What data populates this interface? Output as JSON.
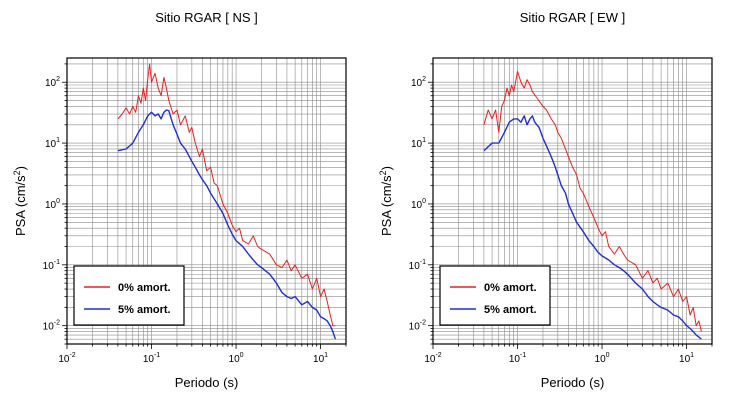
{
  "chart_data": [
    {
      "type": "line",
      "title": "Sitio RGAR [ NS ]",
      "xlabel": "Periodo (s)",
      "ylabel_main": "PSA (cm/s",
      "ylabel_sup": "2",
      "ylabel_close": ")",
      "xscale": "log",
      "yscale": "log",
      "xlim": [
        0.01,
        20
      ],
      "ylim": [
        0.005,
        250
      ],
      "grid": true,
      "legend_position": "bottom-left",
      "x_ticks": [
        {
          "value": 0.01,
          "base": "10",
          "exp": "-2"
        },
        {
          "value": 0.1,
          "base": "10",
          "exp": "-1"
        },
        {
          "value": 1,
          "base": "10",
          "exp": "0"
        },
        {
          "value": 10,
          "base": "10",
          "exp": "1"
        }
      ],
      "y_ticks": [
        {
          "value": 0.01,
          "base": "10",
          "exp": "-2"
        },
        {
          "value": 0.1,
          "base": "10",
          "exp": "-1"
        },
        {
          "value": 1,
          "base": "10",
          "exp": "0"
        },
        {
          "value": 10,
          "base": "10",
          "exp": "1"
        },
        {
          "value": 100,
          "base": "10",
          "exp": "2"
        }
      ],
      "series": [
        {
          "name": "0% amort.",
          "color": "#e8211f",
          "points": [
            [
              0.04,
              25
            ],
            [
              0.045,
              30
            ],
            [
              0.05,
              38
            ],
            [
              0.055,
              30
            ],
            [
              0.06,
              40
            ],
            [
              0.065,
              32
            ],
            [
              0.07,
              60
            ],
            [
              0.075,
              45
            ],
            [
              0.08,
              80
            ],
            [
              0.085,
              50
            ],
            [
              0.09,
              110
            ],
            [
              0.095,
              200
            ],
            [
              0.1,
              100
            ],
            [
              0.11,
              140
            ],
            [
              0.12,
              80
            ],
            [
              0.13,
              60
            ],
            [
              0.14,
              120
            ],
            [
              0.15,
              80
            ],
            [
              0.16,
              50
            ],
            [
              0.18,
              30
            ],
            [
              0.2,
              35
            ],
            [
              0.22,
              20
            ],
            [
              0.25,
              28
            ],
            [
              0.28,
              15
            ],
            [
              0.3,
              18
            ],
            [
              0.33,
              10
            ],
            [
              0.37,
              6
            ],
            [
              0.4,
              8
            ],
            [
              0.45,
              3.5
            ],
            [
              0.5,
              4
            ],
            [
              0.55,
              2.2
            ],
            [
              0.6,
              2
            ],
            [
              0.7,
              1
            ],
            [
              0.8,
              0.7
            ],
            [
              0.9,
              0.45
            ],
            [
              1,
              0.35
            ],
            [
              1.1,
              0.4
            ],
            [
              1.2,
              0.25
            ],
            [
              1.4,
              0.22
            ],
            [
              1.6,
              0.3
            ],
            [
              1.8,
              0.2
            ],
            [
              2,
              0.18
            ],
            [
              2.5,
              0.15
            ],
            [
              3,
              0.1
            ],
            [
              3.5,
              0.09
            ],
            [
              4,
              0.12
            ],
            [
              4.5,
              0.08
            ],
            [
              5,
              0.1
            ],
            [
              6,
              0.06
            ],
            [
              7,
              0.07
            ],
            [
              8,
              0.04
            ],
            [
              9,
              0.06
            ],
            [
              10,
              0.03
            ],
            [
              11,
              0.04
            ],
            [
              12,
              0.025
            ],
            [
              13,
              0.015
            ],
            [
              14,
              0.01
            ],
            [
              15,
              0.01
            ]
          ]
        },
        {
          "name": "5% amort.",
          "color": "#1f2fd8",
          "points": [
            [
              0.04,
              7.5
            ],
            [
              0.05,
              8
            ],
            [
              0.06,
              10
            ],
            [
              0.07,
              15
            ],
            [
              0.08,
              20
            ],
            [
              0.09,
              28
            ],
            [
              0.1,
              32
            ],
            [
              0.11,
              28
            ],
            [
              0.12,
              30
            ],
            [
              0.13,
              25
            ],
            [
              0.14,
              32
            ],
            [
              0.15,
              35
            ],
            [
              0.16,
              34
            ],
            [
              0.18,
              20
            ],
            [
              0.2,
              14
            ],
            [
              0.22,
              10
            ],
            [
              0.25,
              8
            ],
            [
              0.28,
              6
            ],
            [
              0.3,
              5
            ],
            [
              0.33,
              4
            ],
            [
              0.37,
              3
            ],
            [
              0.4,
              2.5
            ],
            [
              0.45,
              2
            ],
            [
              0.5,
              1.5
            ],
            [
              0.6,
              1
            ],
            [
              0.7,
              0.7
            ],
            [
              0.8,
              0.45
            ],
            [
              0.9,
              0.32
            ],
            [
              1,
              0.25
            ],
            [
              1.2,
              0.2
            ],
            [
              1.4,
              0.15
            ],
            [
              1.6,
              0.12
            ],
            [
              1.8,
              0.1
            ],
            [
              2,
              0.09
            ],
            [
              2.5,
              0.07
            ],
            [
              3,
              0.05
            ],
            [
              3.5,
              0.035
            ],
            [
              4,
              0.03
            ],
            [
              4.5,
              0.028
            ],
            [
              5,
              0.03
            ],
            [
              6,
              0.022
            ],
            [
              7,
              0.025
            ],
            [
              8,
              0.02
            ],
            [
              9,
              0.018
            ],
            [
              10,
              0.014
            ],
            [
              11,
              0.013
            ],
            [
              12,
              0.012
            ],
            [
              13,
              0.01
            ],
            [
              14,
              0.008
            ],
            [
              15,
              0.006
            ]
          ]
        }
      ]
    },
    {
      "type": "line",
      "title": "Sitio RGAR [ EW ]",
      "xlabel": "Periodo (s)",
      "ylabel_main": "PSA (cm/s",
      "ylabel_sup": "2",
      "ylabel_close": ")",
      "xscale": "log",
      "yscale": "log",
      "xlim": [
        0.01,
        20
      ],
      "ylim": [
        0.005,
        250
      ],
      "grid": true,
      "legend_position": "bottom-left",
      "x_ticks": [
        {
          "value": 0.01,
          "base": "10",
          "exp": "-2"
        },
        {
          "value": 0.1,
          "base": "10",
          "exp": "-1"
        },
        {
          "value": 1,
          "base": "10",
          "exp": "0"
        },
        {
          "value": 10,
          "base": "10",
          "exp": "1"
        }
      ],
      "y_ticks": [
        {
          "value": 0.01,
          "base": "10",
          "exp": "-2"
        },
        {
          "value": 0.1,
          "base": "10",
          "exp": "-1"
        },
        {
          "value": 1,
          "base": "10",
          "exp": "0"
        },
        {
          "value": 10,
          "base": "10",
          "exp": "1"
        },
        {
          "value": 100,
          "base": "10",
          "exp": "2"
        }
      ],
      "series": [
        {
          "name": "0% amort.",
          "color": "#e8211f",
          "points": [
            [
              0.04,
              20
            ],
            [
              0.045,
              35
            ],
            [
              0.05,
              25
            ],
            [
              0.055,
              35
            ],
            [
              0.06,
              15
            ],
            [
              0.065,
              40
            ],
            [
              0.07,
              50
            ],
            [
              0.075,
              80
            ],
            [
              0.08,
              60
            ],
            [
              0.085,
              90
            ],
            [
              0.09,
              70
            ],
            [
              0.095,
              100
            ],
            [
              0.1,
              150
            ],
            [
              0.11,
              100
            ],
            [
              0.12,
              80
            ],
            [
              0.13,
              110
            ],
            [
              0.14,
              90
            ],
            [
              0.15,
              70
            ],
            [
              0.17,
              55
            ],
            [
              0.2,
              40
            ],
            [
              0.22,
              35
            ],
            [
              0.25,
              25
            ],
            [
              0.28,
              20
            ],
            [
              0.3,
              15
            ],
            [
              0.33,
              12
            ],
            [
              0.37,
              8
            ],
            [
              0.4,
              6
            ],
            [
              0.45,
              4
            ],
            [
              0.5,
              3
            ],
            [
              0.55,
              1.8
            ],
            [
              0.6,
              1.5
            ],
            [
              0.7,
              0.9
            ],
            [
              0.8,
              0.6
            ],
            [
              0.9,
              0.4
            ],
            [
              1,
              0.3
            ],
            [
              1.1,
              0.35
            ],
            [
              1.2,
              0.2
            ],
            [
              1.4,
              0.15
            ],
            [
              1.6,
              0.2
            ],
            [
              1.8,
              0.15
            ],
            [
              2,
              0.12
            ],
            [
              2.5,
              0.1
            ],
            [
              3,
              0.06
            ],
            [
              3.5,
              0.08
            ],
            [
              4,
              0.05
            ],
            [
              4.5,
              0.06
            ],
            [
              5,
              0.04
            ],
            [
              6,
              0.05
            ],
            [
              7,
              0.03
            ],
            [
              8,
              0.04
            ],
            [
              9,
              0.025
            ],
            [
              10,
              0.03
            ],
            [
              11,
              0.015
            ],
            [
              12,
              0.02
            ],
            [
              13,
              0.01
            ],
            [
              14,
              0.012
            ],
            [
              15,
              0.008
            ]
          ]
        },
        {
          "name": "5% amort.",
          "color": "#1f2fd8",
          "points": [
            [
              0.04,
              7.5
            ],
            [
              0.05,
              10
            ],
            [
              0.06,
              10
            ],
            [
              0.07,
              15
            ],
            [
              0.08,
              22
            ],
            [
              0.09,
              25
            ],
            [
              0.1,
              25
            ],
            [
              0.11,
              22
            ],
            [
              0.12,
              28
            ],
            [
              0.13,
              20
            ],
            [
              0.14,
              25
            ],
            [
              0.15,
              28
            ],
            [
              0.16,
              22
            ],
            [
              0.18,
              18
            ],
            [
              0.2,
              12
            ],
            [
              0.22,
              9
            ],
            [
              0.25,
              6
            ],
            [
              0.28,
              4
            ],
            [
              0.3,
              3
            ],
            [
              0.33,
              2
            ],
            [
              0.37,
              1.5
            ],
            [
              0.4,
              1
            ],
            [
              0.45,
              0.7
            ],
            [
              0.5,
              0.5
            ],
            [
              0.6,
              0.35
            ],
            [
              0.7,
              0.25
            ],
            [
              0.8,
              0.2
            ],
            [
              0.9,
              0.16
            ],
            [
              1,
              0.14
            ],
            [
              1.2,
              0.12
            ],
            [
              1.4,
              0.1
            ],
            [
              1.6,
              0.09
            ],
            [
              1.8,
              0.08
            ],
            [
              2,
              0.07
            ],
            [
              2.5,
              0.05
            ],
            [
              3,
              0.04
            ],
            [
              3.5,
              0.03
            ],
            [
              4,
              0.025
            ],
            [
              4.5,
              0.022
            ],
            [
              5,
              0.02
            ],
            [
              6,
              0.018
            ],
            [
              7,
              0.015
            ],
            [
              8,
              0.014
            ],
            [
              9,
              0.012
            ],
            [
              10,
              0.01
            ],
            [
              11,
              0.009
            ],
            [
              12,
              0.008
            ],
            [
              13,
              0.007
            ],
            [
              14,
              0.0065
            ],
            [
              15,
              0.006
            ]
          ]
        }
      ]
    }
  ]
}
